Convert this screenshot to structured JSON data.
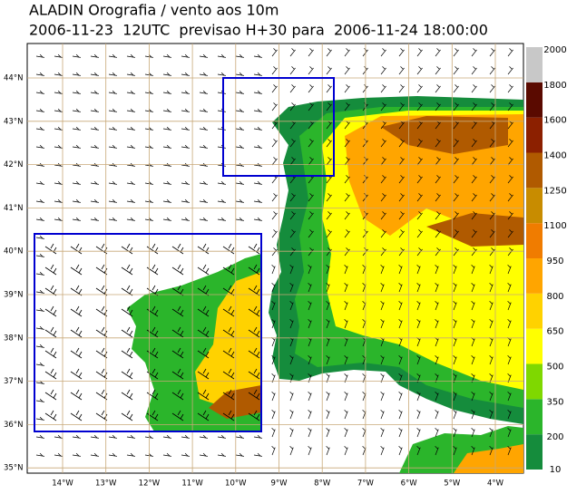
{
  "header": {
    "title": "ALADIN Orografia / vento aos 10m",
    "subtitle": "2006-11-23  12UTC  previsao H+30 para  2006-11-24 18:00:00"
  },
  "map": {
    "lat_labels": [
      "44°N",
      "43°N",
      "42°N",
      "41°N",
      "40°N",
      "39°N",
      "38°N",
      "37°N",
      "36°N",
      "35°N"
    ],
    "lon_labels": [
      "14°W",
      "13°W",
      "12°W",
      "11°W",
      "10°W",
      "9°W",
      "8°W",
      "7°W",
      "6°W",
      "5°W",
      "4°W"
    ]
  },
  "colorbar": {
    "levels": [
      10,
      200,
      350,
      500,
      650,
      800,
      950,
      1100,
      1250,
      1400,
      1600,
      1800,
      2000
    ],
    "colors": [
      "#158c3c",
      "#2bb52b",
      "#7fd800",
      "#ffff00",
      "#ffd200",
      "#ffa500",
      "#f07c00",
      "#c88c00",
      "#b05a00",
      "#8c2000",
      "#5a0a00",
      "#c8c8c8"
    ]
  }
}
